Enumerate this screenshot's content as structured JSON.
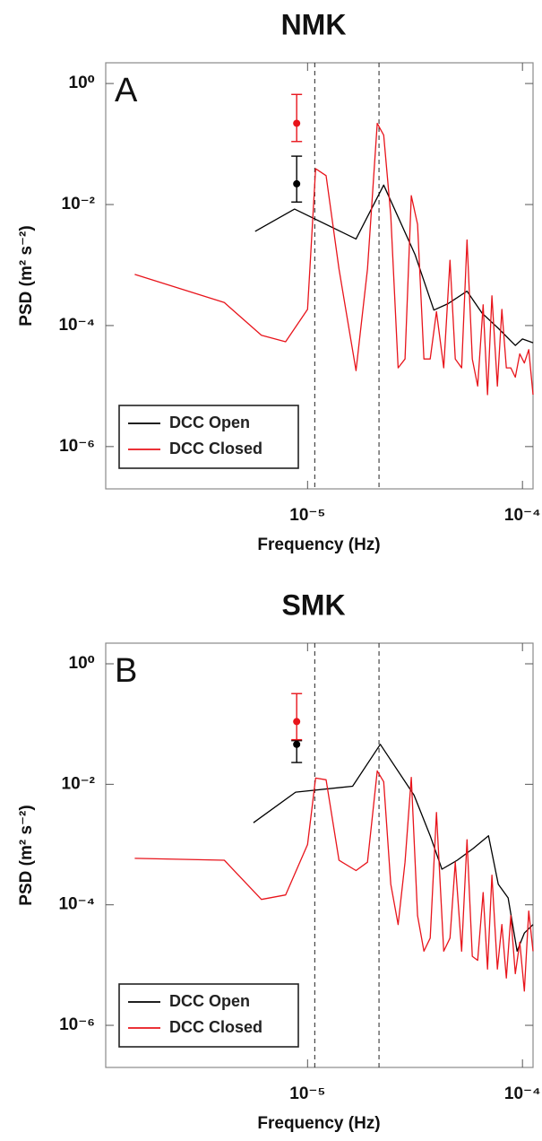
{
  "chart_data": [
    {
      "type": "line",
      "title": "NMK",
      "panel_label": "A",
      "x_label": "Frequency (Hz)",
      "y_label": "PSD (m² s⁻²)",
      "x_log": true,
      "y_log": true,
      "xlim": [
        1.15e-06,
        0.000112
      ],
      "ylim": [
        2e-07,
        2.2
      ],
      "xticks": [
        {
          "value": 1e-05,
          "label": "10⁻⁵"
        },
        {
          "value": 0.0001,
          "label": "10⁻⁴"
        }
      ],
      "yticks": [
        {
          "value": 1,
          "label": "10⁰"
        },
        {
          "value": 0.01,
          "label": "10⁻²"
        },
        {
          "value": 0.0001,
          "label": "10⁻⁴"
        },
        {
          "value": 1e-06,
          "label": "10⁻⁶"
        }
      ],
      "vlines": [
        1.08e-05,
        2.15e-05
      ],
      "legend": "lower left",
      "series": [
        {
          "name": "DCC Open",
          "color": "#000000",
          "x": [
            5.7e-06,
            8.7e-06,
            1.68e-05,
            2.26e-05,
            3.16e-05,
            3.87e-05,
            4.51e-05,
            5.52e-05,
            6.49e-05,
            7.72e-05,
            9.26e-05,
            0.0001,
            0.000112
          ],
          "values": [
            0.0036,
            0.0084,
            0.0027,
            0.021,
            0.0015,
            0.00018,
            0.00023,
            0.00037,
            0.00016,
            9e-05,
            4.7e-05,
            6e-05,
            5.2e-05
          ],
          "error_bar": {
            "x": 8.9e-06,
            "value": 0.022,
            "lower": 0.011,
            "upper": 0.063
          }
        },
        {
          "name": "DCC Closed",
          "color": "#e8141b",
          "x": [
            1.57e-06,
            4.1e-06,
            6.1e-06,
            7.9e-06,
            1e-05,
            1.09e-05,
            1.22e-05,
            1.4e-05,
            1.68e-05,
            1.9e-05,
            2.11e-05,
            2.26e-05,
            2.44e-05,
            2.64e-05,
            2.84e-05,
            3.04e-05,
            3.25e-05,
            3.48e-05,
            3.72e-05,
            3.98e-05,
            4.3e-05,
            4.6e-05,
            4.87e-05,
            5.21e-05,
            5.52e-05,
            5.84e-05,
            6.19e-05,
            6.56e-05,
            6.88e-05,
            7.21e-05,
            7.64e-05,
            8.02e-05,
            8.41e-05,
            8.83e-05,
            9.26e-05,
            9.72e-05,
            0.000102,
            0.000107,
            0.000112
          ],
          "values": [
            0.0007,
            0.00024,
            6.9e-05,
            5.4e-05,
            0.000185,
            0.039,
            0.03,
            0.00086,
            1.8e-05,
            0.00086,
            0.22,
            0.14,
            0.0066,
            2e-05,
            2.8e-05,
            0.014,
            0.0047,
            2.8e-05,
            2.8e-05,
            0.00017,
            2e-05,
            0.0012,
            2.8e-05,
            2e-05,
            0.0026,
            2.8e-05,
            1e-05,
            0.00022,
            7.2e-06,
            0.00031,
            1e-05,
            0.000185,
            2e-05,
            2e-05,
            1.4e-05,
            3.4e-05,
            2.4e-05,
            4e-05,
            7.2e-06
          ],
          "error_bar": {
            "x": 8.9e-06,
            "value": 0.22,
            "lower": 0.11,
            "upper": 0.66
          }
        }
      ]
    },
    {
      "type": "line",
      "title": "SMK",
      "panel_label": "B",
      "x_label": "Frequency (Hz)",
      "y_label": "PSD (m² s⁻²)",
      "x_log": true,
      "y_log": true,
      "xlim": [
        1.15e-06,
        0.000112
      ],
      "ylim": [
        2e-07,
        2.2
      ],
      "xticks": [
        {
          "value": 1e-05,
          "label": "10⁻⁵"
        },
        {
          "value": 0.0001,
          "label": "10⁻⁴"
        }
      ],
      "yticks": [
        {
          "value": 1,
          "label": "10⁰"
        },
        {
          "value": 0.01,
          "label": "10⁻²"
        },
        {
          "value": 0.0001,
          "label": "10⁻⁴"
        },
        {
          "value": 1e-06,
          "label": "10⁻⁶"
        }
      ],
      "vlines": [
        1.08e-05,
        2.15e-05
      ],
      "legend": "lower left",
      "series": [
        {
          "name": "DCC Open",
          "color": "#000000",
          "x": [
            5.6e-06,
            8.8e-06,
            1.62e-05,
            2.18e-05,
            3.13e-05,
            3.72e-05,
            4.22e-05,
            4.97e-05,
            5.9e-05,
            6.95e-05,
            7.72e-05,
            8.58e-05,
            9.44e-05,
            0.000102,
            0.000112
          ],
          "values": [
            0.0023,
            0.0074,
            0.0093,
            0.046,
            0.0066,
            0.0014,
            0.00039,
            0.00055,
            0.00086,
            0.0014,
            0.00022,
            0.00013,
            1.7e-05,
            3.4e-05,
            4.7e-05
          ],
          "error_bar": {
            "x": 8.9e-06,
            "value": 0.046,
            "lower": 0.023,
            "upper": 0.053
          }
        },
        {
          "name": "DCC Closed",
          "color": "#e8141b",
          "x": [
            1.57e-06,
            4.1e-06,
            6.1e-06,
            7.9e-06,
            1e-05,
            1.09e-05,
            1.22e-05,
            1.4e-05,
            1.68e-05,
            1.9e-05,
            2.11e-05,
            2.26e-05,
            2.44e-05,
            2.64e-05,
            2.84e-05,
            3.04e-05,
            3.25e-05,
            3.48e-05,
            3.72e-05,
            3.98e-05,
            4.3e-05,
            4.6e-05,
            4.87e-05,
            5.21e-05,
            5.52e-05,
            5.84e-05,
            6.19e-05,
            6.56e-05,
            6.88e-05,
            7.21e-05,
            7.64e-05,
            8.02e-05,
            8.41e-05,
            8.83e-05,
            9.26e-05,
            9.72e-05,
            0.000102,
            0.000107,
            0.000112
          ],
          "values": [
            0.00059,
            0.00055,
            0.000123,
            0.000146,
            0.001,
            0.0127,
            0.0119,
            0.00055,
            0.00037,
            0.00051,
            0.0167,
            0.011,
            0.00022,
            4.7e-05,
            0.00051,
            0.013,
            6.6e-05,
            1.7e-05,
            2.8e-05,
            0.0034,
            1.7e-05,
            2.8e-05,
            0.00051,
            1.7e-05,
            0.0012,
            1.4e-05,
            1.2e-05,
            0.00016,
            8.6e-06,
            0.00031,
            8.6e-06,
            4.7e-05,
            6.1e-06,
            6.6e-05,
            7.2e-06,
            2.4e-05,
            3.7e-06,
            7.9e-05,
            1.7e-05
          ],
          "error_bar": {
            "x": 8.9e-06,
            "value": 0.11,
            "lower": 0.055,
            "upper": 0.32
          }
        }
      ]
    }
  ]
}
